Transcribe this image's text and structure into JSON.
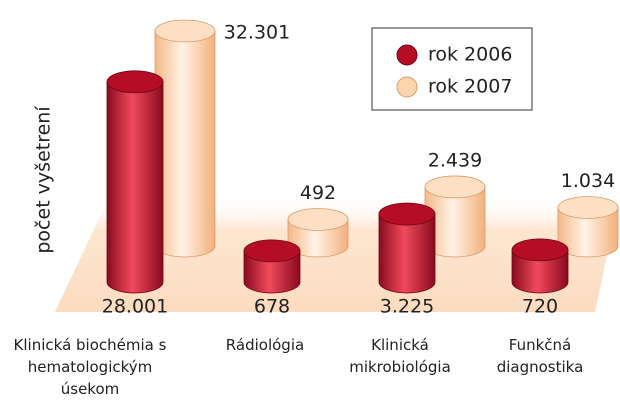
{
  "chart_data": {
    "type": "cylinder-bar",
    "y_label": "počet vyšetrení",
    "categories": [
      "Klinická biochémia s hematologickým úsekom",
      "Rádiológia",
      "Klinická mikrobiológia",
      "Funkčná diagnostika"
    ],
    "series": [
      {
        "name": "rok 2006",
        "color": "#c8102e",
        "values": [
          28001,
          678,
          3225,
          720
        ],
        "value_labels": [
          "28.001",
          "678",
          "3.225",
          "720"
        ]
      },
      {
        "name": "rok 2007",
        "color": "#fdd5ad",
        "values": [
          32301,
          492,
          2439,
          1034
        ],
        "value_labels": [
          "32.301",
          "492",
          "2.439",
          "1.034"
        ]
      }
    ]
  }
}
